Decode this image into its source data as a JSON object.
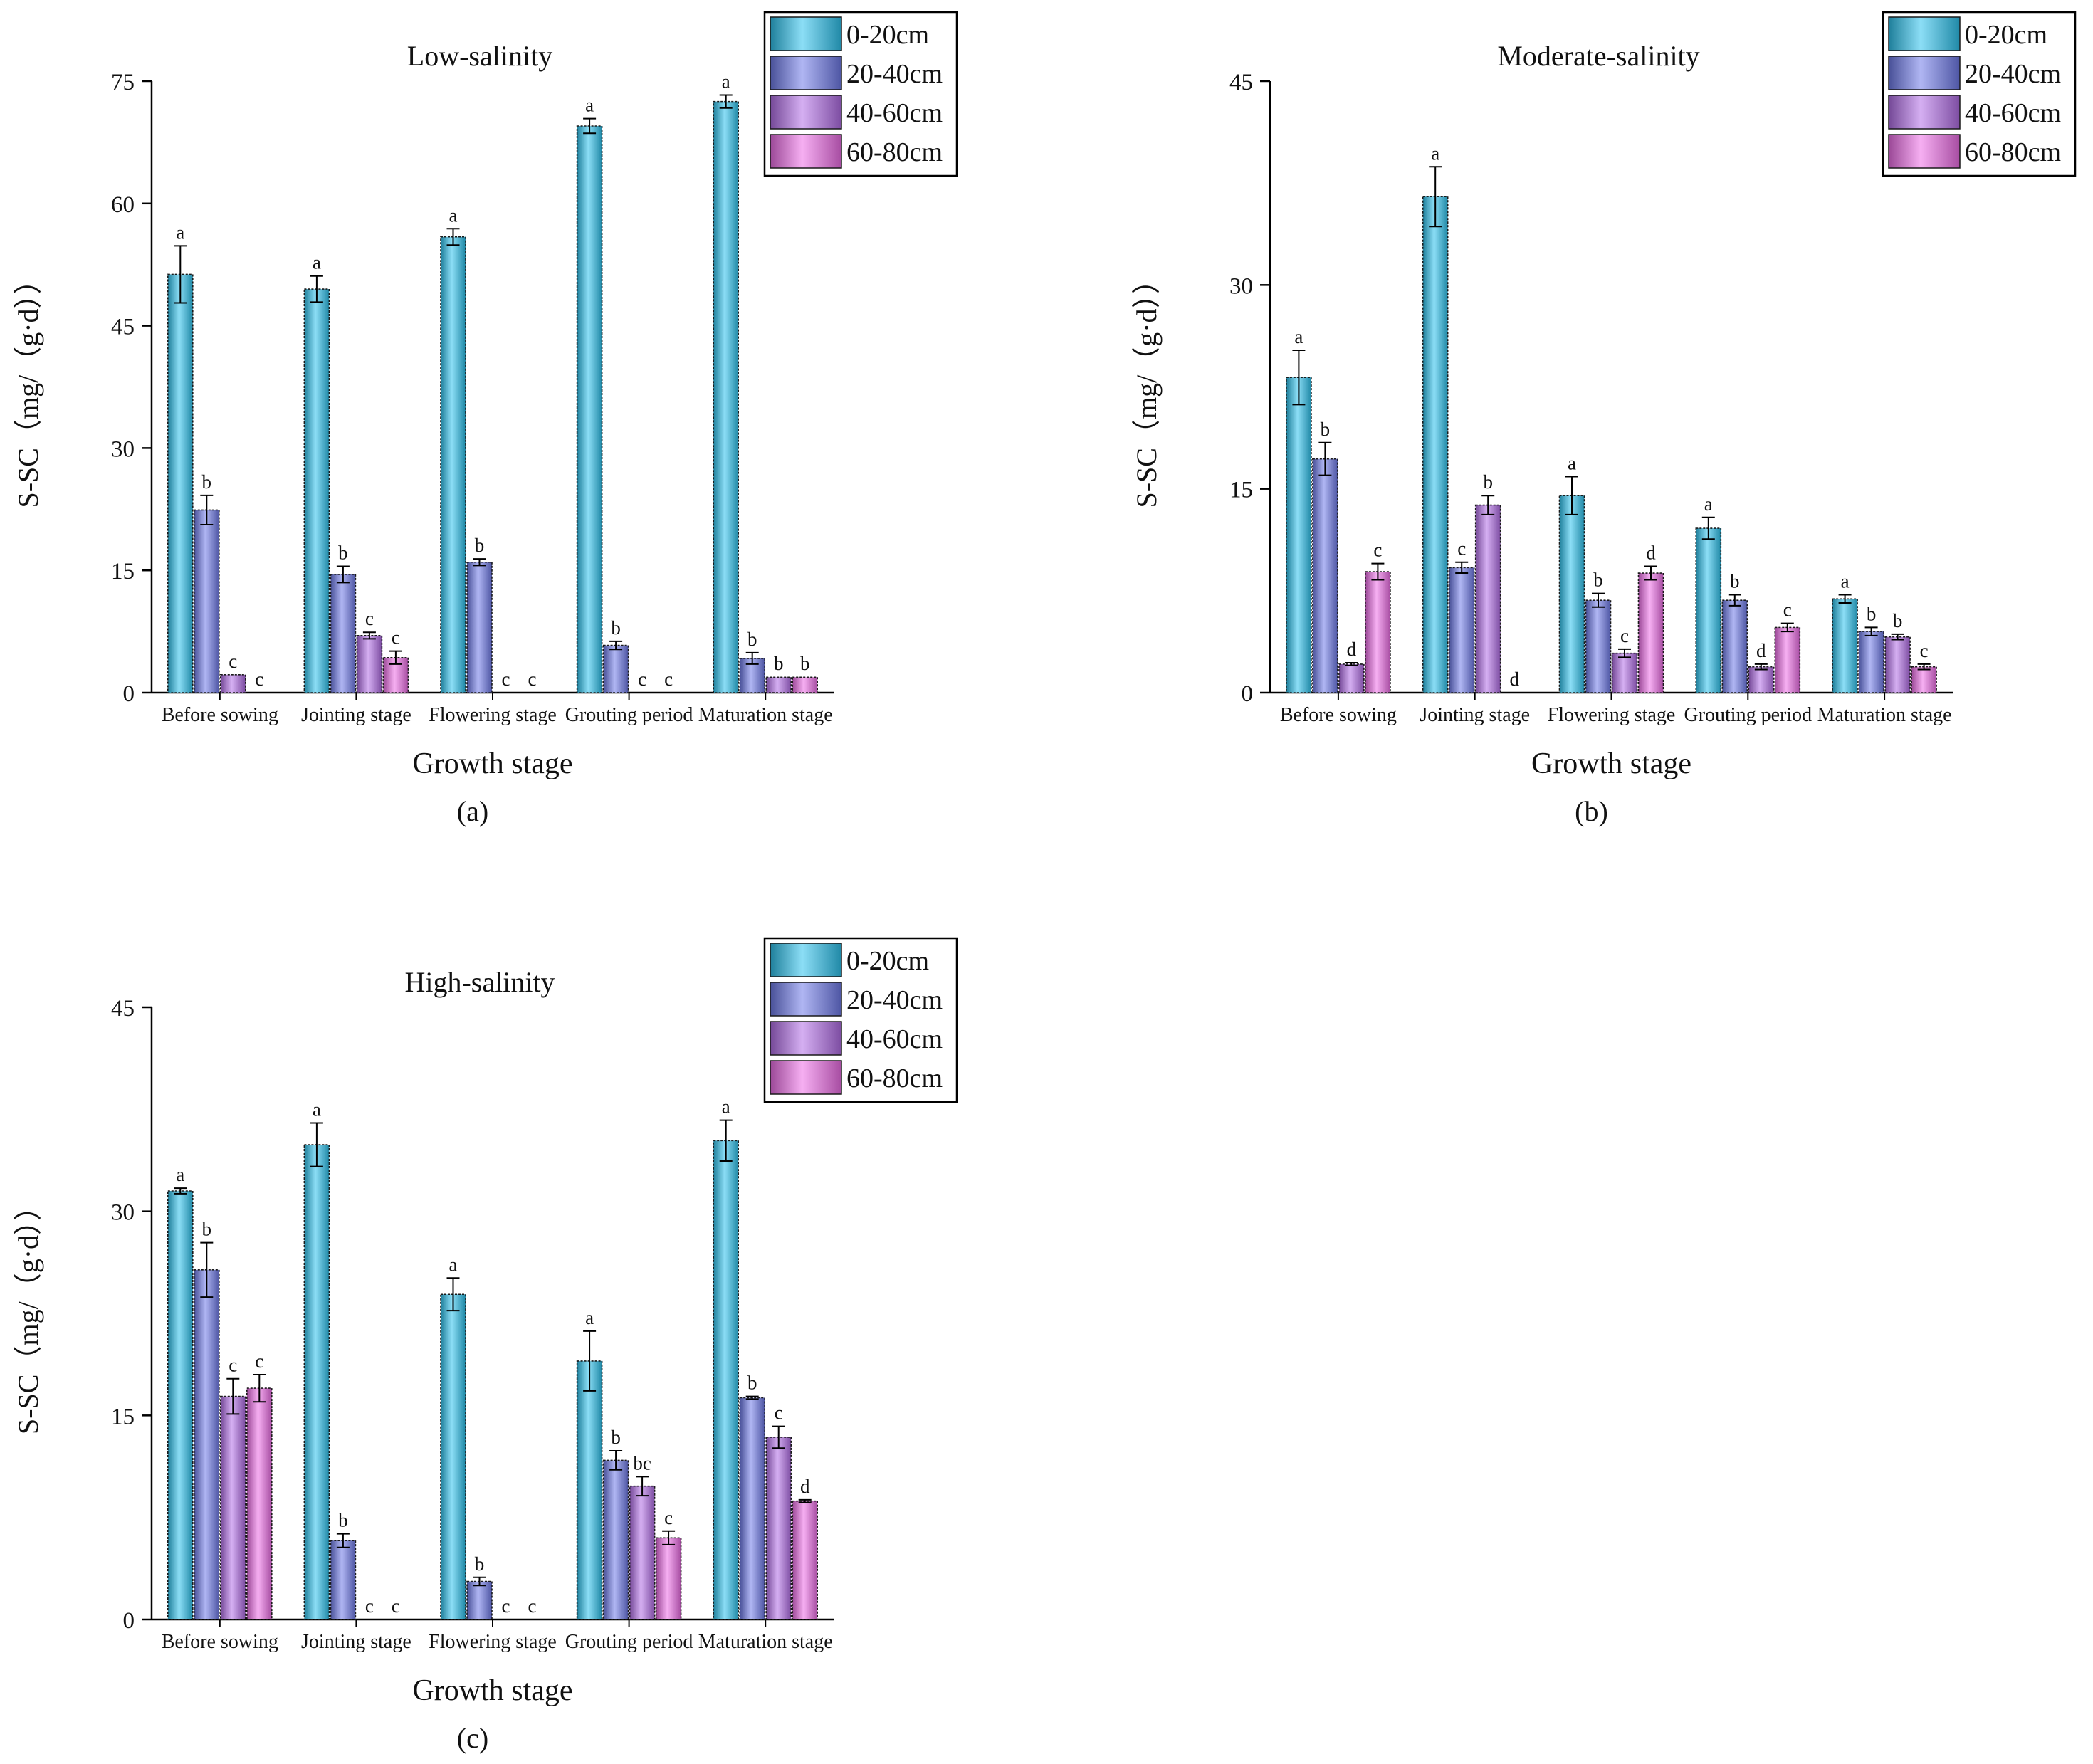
{
  "figure": {
    "colors": {
      "0-20cm": "#2ec3ee",
      "20-40cm": "#6f7bea",
      "40-60cm": "#b36ee8",
      "60-80cm": "#ee6ee8"
    }
  },
  "chart_data": [
    {
      "type": "bar",
      "panel_id": "a",
      "caption": "(a)",
      "title": "Low-salinity",
      "xlabel": "Growth stage",
      "ylabel": "S-SC（mg/（g·d））",
      "ylim": [
        0,
        75
      ],
      "yticks": [
        0,
        15,
        30,
        45,
        60,
        75
      ],
      "legend_position": "top-right",
      "categories": [
        "Before sowing",
        "Jointing stage",
        "Flowering stage",
        "Grouting period",
        "Maturation stage"
      ],
      "series": [
        {
          "name": "0-20cm",
          "values": [
            51.3,
            49.5,
            55.9,
            69.5,
            72.5
          ],
          "errors": [
            3.5,
            1.6,
            1.0,
            0.9,
            0.8
          ],
          "letters": [
            "a",
            "a",
            "a",
            "a",
            "a"
          ]
        },
        {
          "name": "20-40cm",
          "values": [
            22.4,
            14.5,
            16.0,
            5.8,
            4.2
          ],
          "errors": [
            1.8,
            1.0,
            0.4,
            0.5,
            0.7
          ],
          "letters": [
            "b",
            "b",
            "b",
            "b",
            "b"
          ]
        },
        {
          "name": "40-60cm",
          "values": [
            2.2,
            7.0,
            0,
            0,
            1.9
          ],
          "errors": [
            0,
            0.4,
            0,
            0,
            0
          ],
          "letters": [
            "c",
            "c",
            "c",
            "c",
            "b"
          ]
        },
        {
          "name": "60-80cm",
          "values": [
            0,
            4.3,
            0,
            0,
            1.9
          ],
          "errors": [
            0,
            0.8,
            0,
            0,
            0
          ],
          "letters": [
            "c",
            "c",
            "c",
            "c",
            "b"
          ]
        }
      ]
    },
    {
      "type": "bar",
      "panel_id": "b",
      "caption": "(b)",
      "title": "Moderate-salinity",
      "xlabel": "Growth stage",
      "ylabel": "S-SC（mg/（g·d））",
      "ylim": [
        0,
        45
      ],
      "yticks": [
        0,
        15,
        30,
        45
      ],
      "legend_position": "top-right",
      "categories": [
        "Before sowing",
        "Jointing stage",
        "Flowering stage",
        "Grouting period",
        "Maturation stage"
      ],
      "series": [
        {
          "name": "0-20cm",
          "values": [
            23.2,
            36.5,
            14.5,
            12.1,
            6.9
          ],
          "errors": [
            2.0,
            2.2,
            1.4,
            0.8,
            0.3
          ],
          "letters": [
            "a",
            "a",
            "a",
            "a",
            "a"
          ]
        },
        {
          "name": "20-40cm",
          "values": [
            17.2,
            9.2,
            6.8,
            6.8,
            4.5
          ],
          "errors": [
            1.2,
            0.4,
            0.5,
            0.4,
            0.3
          ],
          "letters": [
            "b",
            "c",
            "b",
            "b",
            "b"
          ]
        },
        {
          "name": "40-60cm",
          "values": [
            2.1,
            13.8,
            2.9,
            1.9,
            4.1
          ],
          "errors": [
            0.1,
            0.7,
            0.3,
            0.2,
            0.2
          ],
          "letters": [
            "d",
            "b",
            "c",
            "d",
            "b"
          ]
        },
        {
          "name": "60-80cm",
          "values": [
            8.9,
            0,
            8.8,
            4.8,
            1.9
          ],
          "errors": [
            0.6,
            0,
            0.5,
            0.3,
            0.2
          ],
          "letters": [
            "c",
            "d",
            "d",
            "c",
            "c"
          ]
        }
      ]
    },
    {
      "type": "bar",
      "panel_id": "c",
      "caption": "(c)",
      "title": "High-salinity",
      "xlabel": "Growth stage",
      "ylabel": "S-SC（mg/（g·d））",
      "ylim": [
        0,
        45
      ],
      "yticks": [
        0,
        15,
        30,
        45
      ],
      "legend_position": "top-right",
      "categories": [
        "Before sowing",
        "Jointing stage",
        "Flowering stage",
        "Grouting period",
        "Maturation stage"
      ],
      "series": [
        {
          "name": "0-20cm",
          "values": [
            31.5,
            34.9,
            23.9,
            19.0,
            35.2
          ],
          "errors": [
            0.2,
            1.6,
            1.2,
            2.2,
            1.5
          ],
          "letters": [
            "a",
            "a",
            "a",
            "a",
            "a"
          ]
        },
        {
          "name": "20-40cm",
          "values": [
            25.7,
            5.8,
            2.8,
            11.7,
            16.3
          ],
          "errors": [
            2.0,
            0.5,
            0.3,
            0.7,
            0.1
          ],
          "letters": [
            "b",
            "b",
            "b",
            "b",
            "b"
          ]
        },
        {
          "name": "40-60cm",
          "values": [
            16.4,
            0,
            0,
            9.8,
            13.4
          ],
          "errors": [
            1.3,
            0,
            0,
            0.7,
            0.8
          ],
          "letters": [
            "c",
            "c",
            "c",
            "bc",
            "c"
          ]
        },
        {
          "name": "60-80cm",
          "values": [
            17.0,
            0,
            0,
            6.0,
            8.7
          ],
          "errors": [
            1.0,
            0,
            0,
            0.5,
            0.1
          ],
          "letters": [
            "c",
            "c",
            "c",
            "c",
            "d"
          ]
        }
      ]
    }
  ]
}
